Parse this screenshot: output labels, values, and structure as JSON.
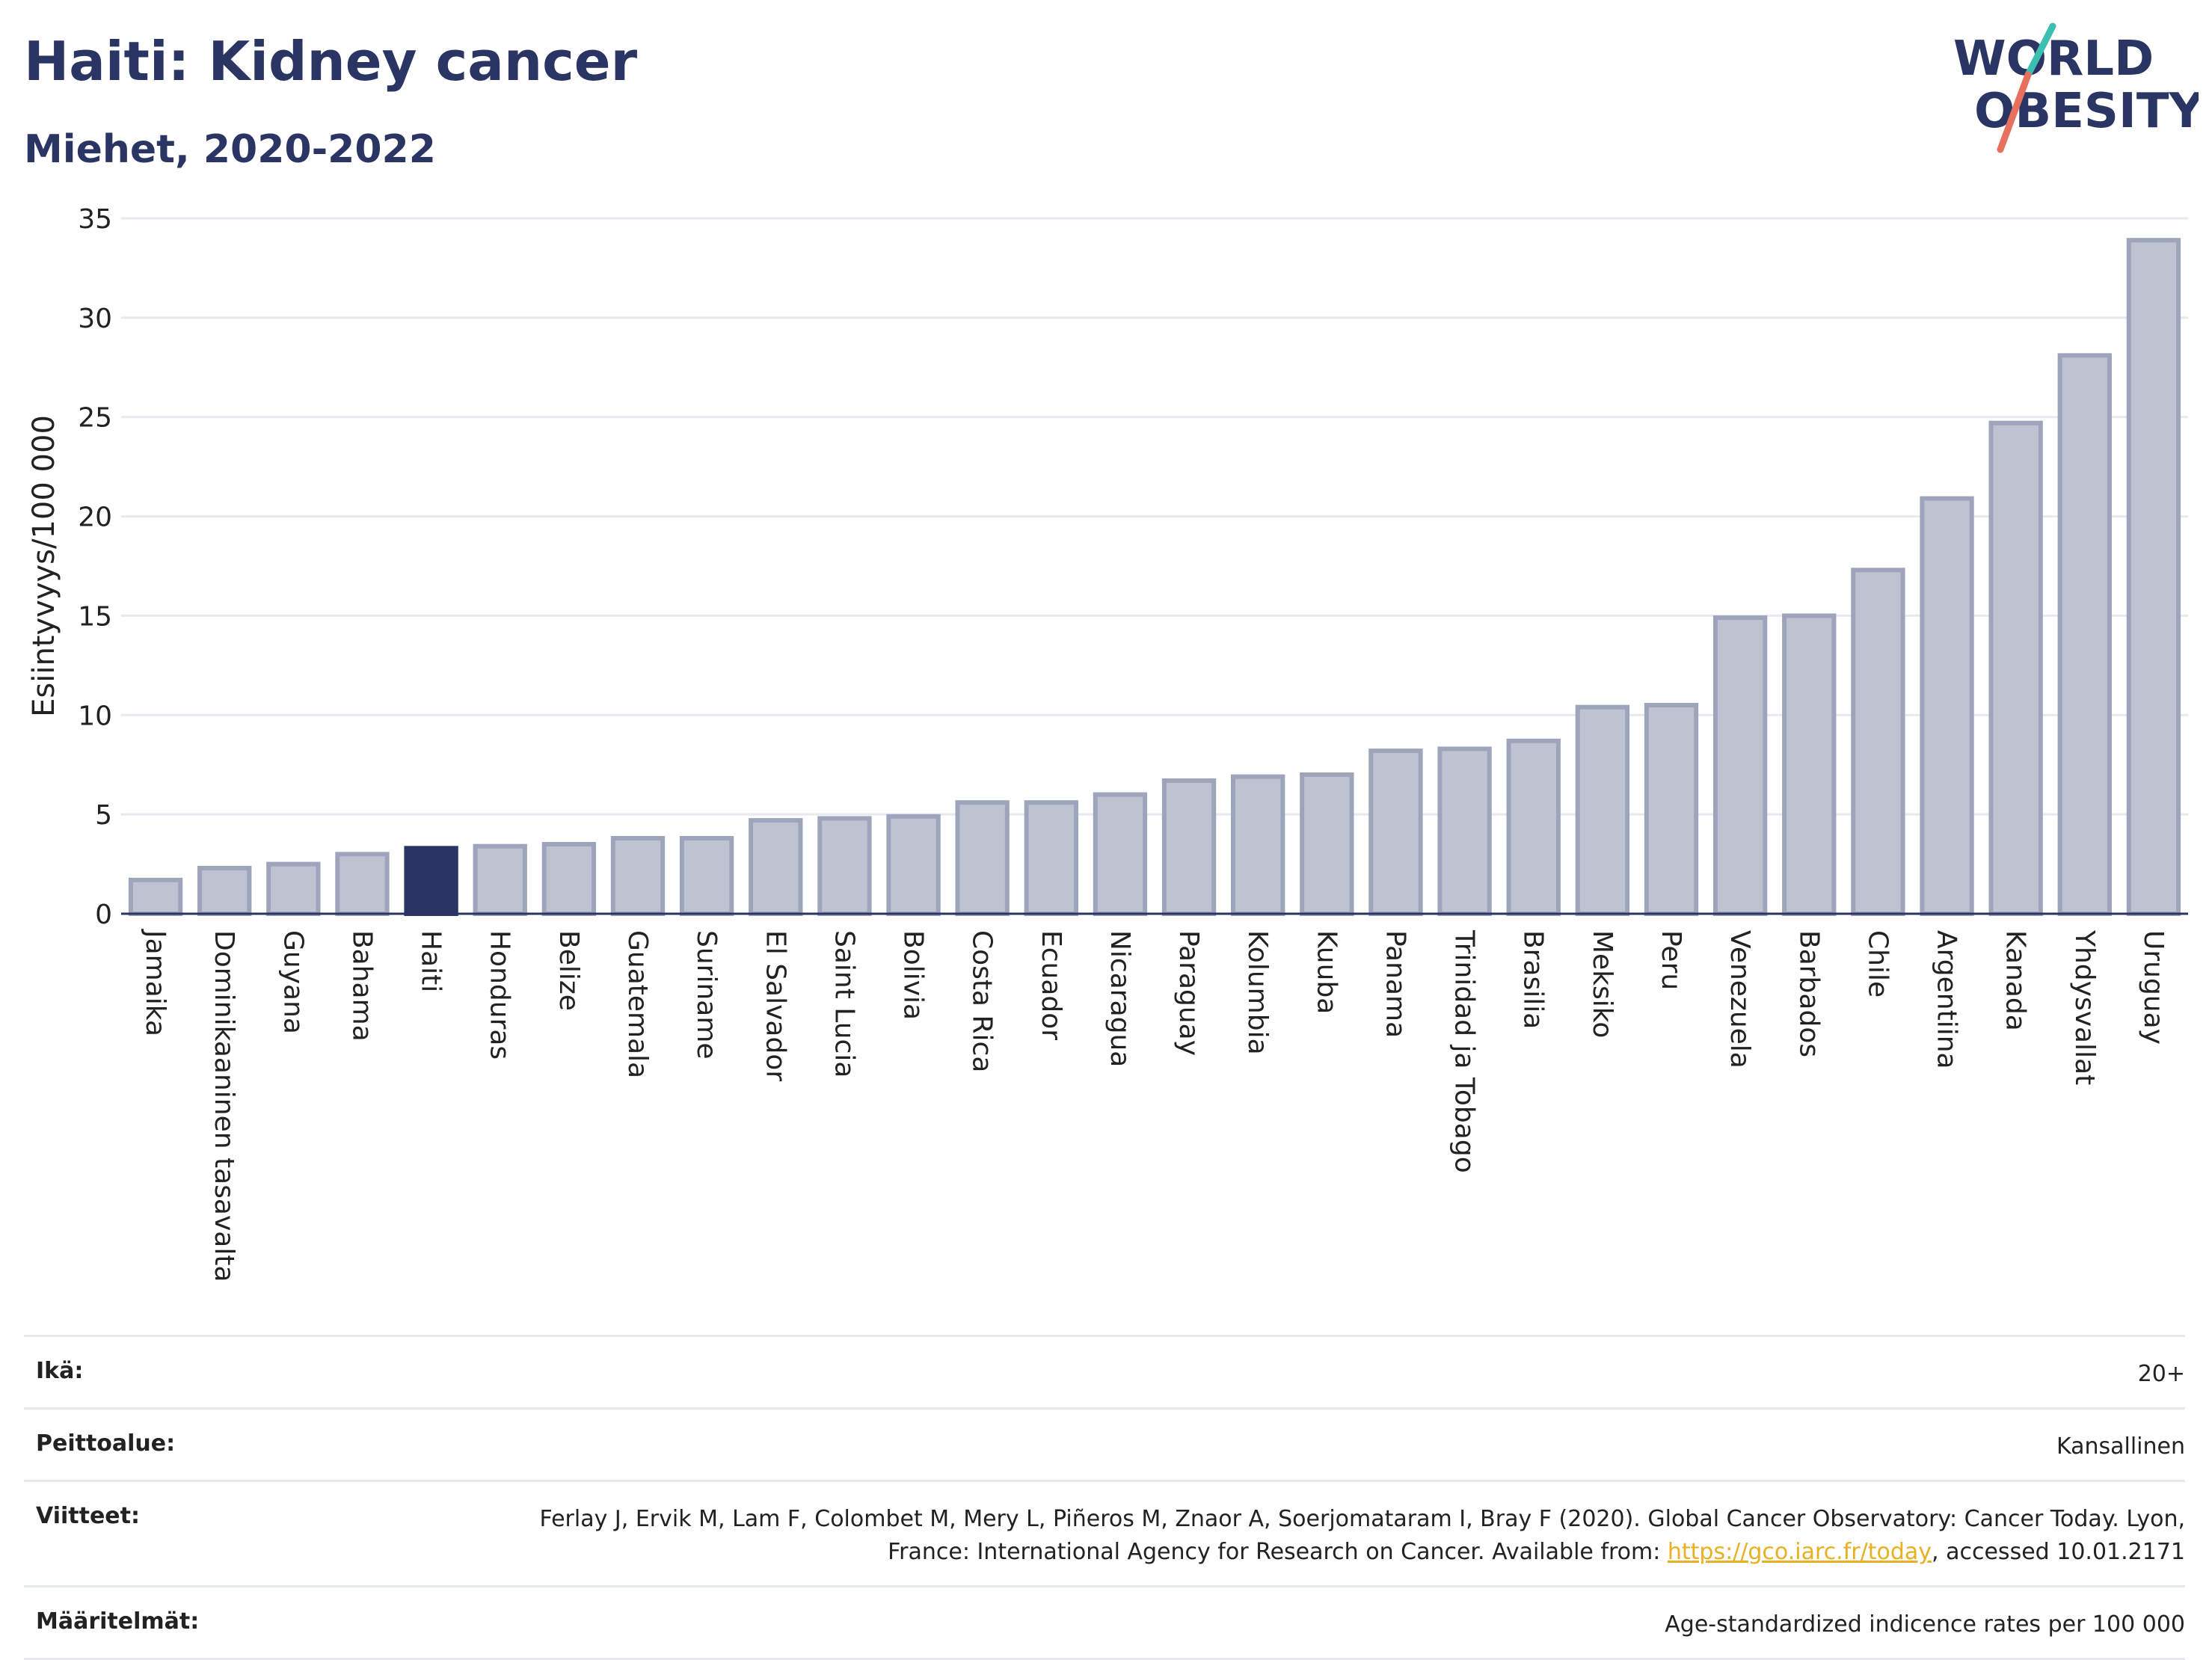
{
  "title": "Haiti: Kidney cancer",
  "subtitle": "Miehet, 2020-2022",
  "logo": {
    "line1": "WORLD",
    "line2": "OBESITY"
  },
  "colors": {
    "highlight": "#2b3563",
    "bar_fill": "#bfc3d1",
    "bar_stroke": "#9ea4bc",
    "grid": "#e8e9ee",
    "logo_slash_teal": "#3bbfb0",
    "logo_slash_red": "#e8705e",
    "link": "#e8b022"
  },
  "chart_data": {
    "type": "bar",
    "ylabel": "Esiintyvyys/100 000",
    "ylim": [
      0,
      35
    ],
    "yticks": [
      0,
      5,
      10,
      15,
      20,
      25,
      30,
      35
    ],
    "grid": true,
    "highlight": "Haiti",
    "categories": [
      "Jamaika",
      "Dominikaaninen tasavalta",
      "Guyana",
      "Bahama",
      "Haiti",
      "Honduras",
      "Belize",
      "Guatemala",
      "Suriname",
      "El Salvador",
      "Saint Lucia",
      "Bolivia",
      "Costa Rica",
      "Ecuador",
      "Nicaragua",
      "Paraguay",
      "Kolumbia",
      "Kuuba",
      "Panama",
      "Trinidad ja Tobago",
      "Brasilia",
      "Meksiko",
      "Peru",
      "Venezuela",
      "Barbados",
      "Chile",
      "Argentiina",
      "Kanada",
      "Yhdysvallat",
      "Uruguay"
    ],
    "values": [
      1.7,
      2.3,
      2.5,
      3.0,
      3.3,
      3.4,
      3.5,
      3.8,
      3.8,
      4.7,
      4.8,
      4.9,
      5.6,
      5.6,
      6.0,
      6.7,
      6.9,
      7.0,
      8.2,
      8.3,
      8.7,
      10.4,
      10.5,
      14.9,
      15.0,
      17.3,
      20.9,
      24.7,
      28.1,
      33.9
    ]
  },
  "meta": [
    {
      "label": "Ikä:",
      "value": "20+"
    },
    {
      "label": "Peittoalue:",
      "value": "Kansallinen"
    },
    {
      "label": "Viitteet:",
      "value_before": "Ferlay J, Ervik M, Lam F, Colombet M, Mery L, Piñeros M, Znaor A, Soerjomataram I, Bray F (2020). Global Cancer Observatory: Cancer Today. Lyon, France: International Agency for Research on Cancer. Available from: ",
      "link": "https://gco.iarc.fr/today",
      "value_after": ", accessed 10.01.2171"
    },
    {
      "label": "Määritelmät:",
      "value": "Age-standardized indicence rates per 100 000"
    }
  ]
}
